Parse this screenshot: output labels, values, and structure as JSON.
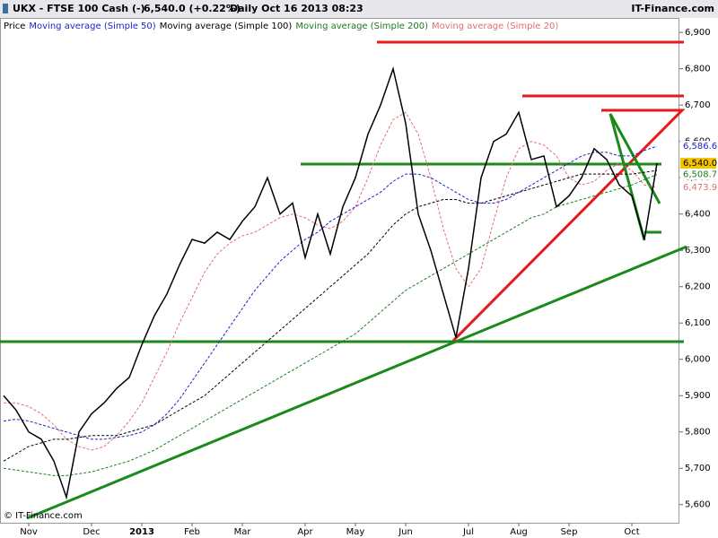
{
  "chart_data": {
    "type": "line",
    "header": {
      "symbol": "UKX - FTSE 100 Cash (-)",
      "quote": "6,540.0 (+0.22%)",
      "period": "Daily  Oct 16 2013 08:23",
      "source": "IT-Finance.com"
    },
    "footer": "© IT-Finance.com",
    "categories": [
      null,
      null,
      "Nov",
      null,
      null,
      null,
      null,
      "Dec",
      null,
      null,
      null,
      "2013",
      null,
      null,
      null,
      "Feb",
      null,
      null,
      null,
      "Mar",
      null,
      null,
      null,
      null,
      "Apr",
      null,
      null,
      null,
      "May",
      null,
      null,
      null,
      "Jun",
      null,
      null,
      null,
      null,
      "Jul",
      null,
      null,
      null,
      "Aug",
      null,
      null,
      null,
      "Sep",
      null,
      null,
      null,
      null,
      "Oct",
      null,
      null
    ],
    "series": [
      {
        "name": "Price",
        "color": "#000000",
        "dash": false,
        "last_label": "6,540.0",
        "values": [
          5900,
          5860,
          5800,
          5780,
          5720,
          5620,
          5800,
          5850,
          5880,
          5920,
          5950,
          6040,
          6120,
          6180,
          6260,
          6330,
          6320,
          6350,
          6330,
          6380,
          6420,
          6500,
          6400,
          6430,
          6280,
          6400,
          6290,
          6420,
          6500,
          6620,
          6700,
          6800,
          6650,
          6400,
          6300,
          6180,
          6060,
          6250,
          6500,
          6600,
          6620,
          6680,
          6550,
          6560,
          6420,
          6450,
          6500,
          6580,
          6550,
          6480,
          6450,
          6330,
          6540
        ]
      },
      {
        "name": "Moving average (Simple 50)",
        "color": "#1f1fc8",
        "dash": true,
        "last_label": "6,586.6",
        "values": [
          5830,
          5835,
          5830,
          5820,
          5810,
          5800,
          5790,
          5780,
          5780,
          5785,
          5790,
          5800,
          5820,
          5850,
          5890,
          5940,
          5990,
          6040,
          6090,
          6140,
          6190,
          6230,
          6270,
          6300,
          6330,
          6350,
          6380,
          6400,
          6420,
          6440,
          6460,
          6490,
          6510,
          6510,
          6500,
          6480,
          6460,
          6440,
          6430,
          6430,
          6440,
          6460,
          6480,
          6500,
          6520,
          6540,
          6560,
          6570,
          6570,
          6560,
          6560,
          6575,
          6586.6
        ]
      },
      {
        "name": "Moving average (Simple 100)",
        "color": "#000000",
        "dash": true,
        "values": [
          5720,
          5740,
          5760,
          5770,
          5780,
          5780,
          5785,
          5790,
          5790,
          5790,
          5800,
          5810,
          5820,
          5840,
          5860,
          5880,
          5900,
          5930,
          5960,
          5990,
          6020,
          6050,
          6080,
          6110,
          6140,
          6170,
          6200,
          6230,
          6260,
          6290,
          6330,
          6370,
          6400,
          6420,
          6430,
          6440,
          6440,
          6430,
          6430,
          6440,
          6450,
          6460,
          6470,
          6480,
          6490,
          6500,
          6510,
          6510,
          6510,
          6510,
          6510,
          6515,
          6520
        ]
      },
      {
        "name": "Moving average (Simple 200)",
        "color": "#1e7a1e",
        "dash": true,
        "last_label": "6,508.7",
        "values": [
          5700,
          5695,
          5690,
          5685,
          5680,
          5680,
          5685,
          5690,
          5700,
          5710,
          5720,
          5735,
          5750,
          5770,
          5790,
          5810,
          5830,
          5850,
          5870,
          5890,
          5910,
          5930,
          5950,
          5970,
          5990,
          6010,
          6030,
          6050,
          6070,
          6100,
          6130,
          6160,
          6190,
          6210,
          6230,
          6250,
          6270,
          6290,
          6310,
          6330,
          6350,
          6370,
          6390,
          6400,
          6420,
          6430,
          6440,
          6450,
          6460,
          6470,
          6480,
          6495,
          6508.7
        ]
      },
      {
        "name": "Moving average (Simple 20)",
        "color": "#e07070",
        "dash": true,
        "last_label": "6,473.9",
        "values": [
          5880,
          5880,
          5870,
          5850,
          5820,
          5780,
          5760,
          5750,
          5760,
          5790,
          5830,
          5880,
          5950,
          6020,
          6100,
          6170,
          6240,
          6290,
          6320,
          6340,
          6350,
          6370,
          6390,
          6400,
          6390,
          6370,
          6360,
          6380,
          6420,
          6500,
          6590,
          6660,
          6680,
          6620,
          6500,
          6360,
          6250,
          6200,
          6250,
          6380,
          6500,
          6580,
          6600,
          6590,
          6560,
          6500,
          6480,
          6490,
          6520,
          6540,
          6520,
          6480,
          6473.9
        ]
      }
    ],
    "ylim": [
      5550,
      6940
    ],
    "yticks": [
      {
        "value": 5600,
        "label": "5,600"
      },
      {
        "value": 5700,
        "label": "5,700"
      },
      {
        "value": 5800,
        "label": "5,800"
      },
      {
        "value": 5900,
        "label": "5,900"
      },
      {
        "value": 6000,
        "label": "6,000"
      },
      {
        "value": 6100,
        "label": "6,100"
      },
      {
        "value": 6200,
        "label": "6,200"
      },
      {
        "value": 6300,
        "label": "6,300"
      },
      {
        "value": 6400,
        "label": "6,400"
      },
      {
        "value": 6500,
        "label": "6,500"
      },
      {
        "value": 6600,
        "label": "6,600"
      },
      {
        "value": 6700,
        "label": "6,700"
      },
      {
        "value": 6800,
        "label": "6,800"
      },
      {
        "value": 6900,
        "label": "6,900"
      }
    ]
  }
}
